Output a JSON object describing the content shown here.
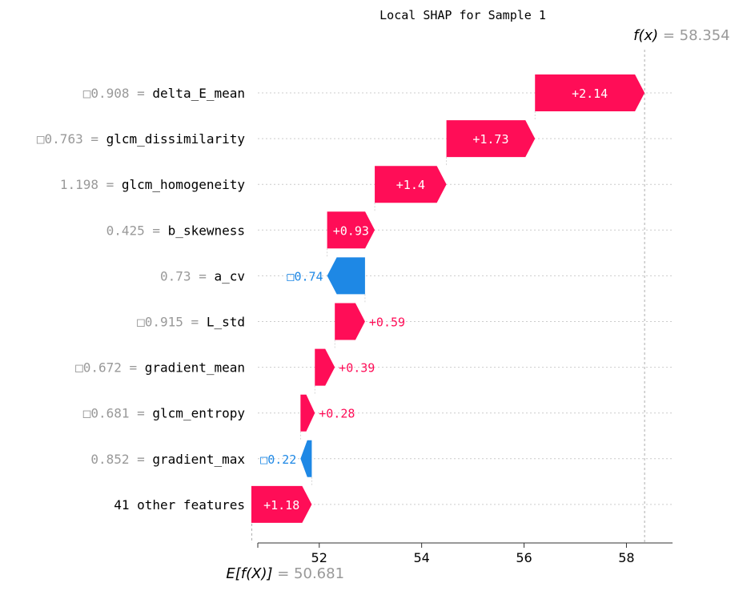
{
  "chart_data": {
    "type": "waterfall",
    "title": "Local SHAP for Sample 1",
    "fx_label": "f(x)",
    "fx_value": "58.354",
    "ex_label": "E[f(X)]",
    "ex_value": "50.681",
    "base_value": 50.681,
    "final_value": 58.354,
    "xlim": [
      50.8,
      58.9
    ],
    "xticks": [
      52,
      54,
      56,
      58
    ],
    "features": [
      {
        "value_text": "□0.908",
        "name": "delta_E_mean",
        "shap": 2.14,
        "label": "+2.14"
      },
      {
        "value_text": "□0.763",
        "name": "glcm_dissimilarity",
        "shap": 1.73,
        "label": "+1.73"
      },
      {
        "value_text": "1.198",
        "name": "glcm_homogeneity",
        "shap": 1.4,
        "label": "+1.4"
      },
      {
        "value_text": "0.425",
        "name": "b_skewness",
        "shap": 0.93,
        "label": "+0.93"
      },
      {
        "value_text": "0.73",
        "name": "a_cv",
        "shap": -0.74,
        "label": "□0.74"
      },
      {
        "value_text": "□0.915",
        "name": "L_std",
        "shap": 0.59,
        "label": "+0.59"
      },
      {
        "value_text": "□0.672",
        "name": "gradient_mean",
        "shap": 0.39,
        "label": "+0.39"
      },
      {
        "value_text": "□0.681",
        "name": "glcm_entropy",
        "shap": 0.28,
        "label": "+0.28"
      },
      {
        "value_text": "0.852",
        "name": "gradient_max",
        "shap": -0.22,
        "label": "□0.22"
      },
      {
        "value_text": "",
        "name": "41 other features",
        "shap": 1.18,
        "label": "+1.18"
      }
    ],
    "colors": {
      "positive": "#ff0d57",
      "negative": "#1e88e5",
      "axis": "#333333",
      "muted": "#999999",
      "grid": "#cccccc"
    }
  }
}
